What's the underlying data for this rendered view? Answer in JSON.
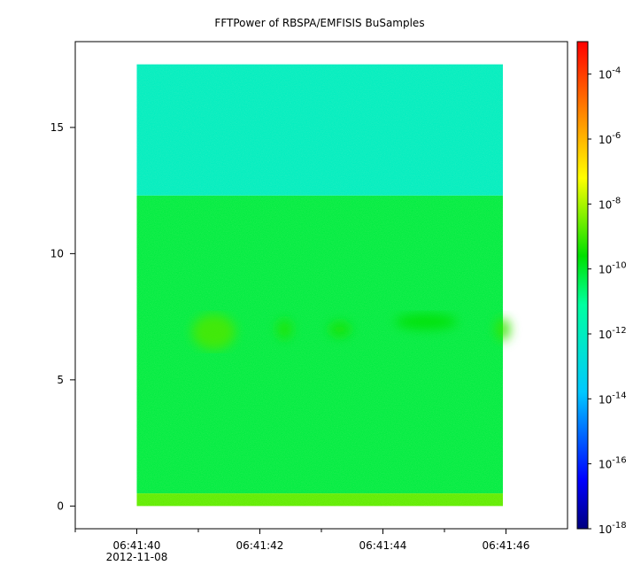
{
  "chart_data": {
    "type": "heatmap",
    "title": "FFTPower of RBSPA/EMFISIS  BuSamples",
    "xlabel": "",
    "ylabel": "",
    "x": {
      "ticks": [
        {
          "t": 0,
          "label": "06:41:40"
        },
        {
          "t": 2,
          "label": "06:41:42"
        },
        {
          "t": 4,
          "label": "06:41:44"
        },
        {
          "t": 6,
          "label": "06:41:46"
        }
      ],
      "minor_ticks": [
        -1,
        1,
        3,
        5
      ],
      "date_label": "2012-11-08",
      "range": [
        -1.0,
        7.0
      ],
      "data_range": [
        0.0,
        5.95
      ]
    },
    "y": {
      "ticks": [
        0,
        5,
        10,
        15
      ],
      "range": [
        -0.9,
        18.4
      ],
      "data_range": [
        0.0,
        17.5
      ]
    },
    "colorbar": {
      "scale": "log",
      "range": [
        1e-18,
        0.001
      ],
      "ticks": [
        {
          "base": "10",
          "exp": "-4",
          "value": 0.0001
        },
        {
          "base": "10",
          "exp": "-6",
          "value": 1e-06
        },
        {
          "base": "10",
          "exp": "-8",
          "value": 1e-08
        },
        {
          "base": "10",
          "exp": "-10",
          "value": 1e-10
        },
        {
          "base": "10",
          "exp": "-12",
          "value": 1e-12
        },
        {
          "base": "10",
          "exp": "-14",
          "value": 1e-14
        },
        {
          "base": "10",
          "exp": "-16",
          "value": 1e-16
        },
        {
          "base": "10",
          "exp": "-18",
          "value": 1e-18
        }
      ],
      "colormap": [
        "#00007f",
        "#0000ff",
        "#00c8ff",
        "#00ffa0",
        "#00e000",
        "#ffff00",
        "#ff8000",
        "#ff0000"
      ]
    },
    "bands": [
      {
        "y": [
          12.3,
          17.5
        ],
        "log_power": -12.0
      },
      {
        "y": [
          0.5,
          12.3
        ],
        "log_power": -10.2
      },
      {
        "y": [
          0.0,
          0.5
        ],
        "log_power": -8.7
      }
    ],
    "features": [
      {
        "t": 1.25,
        "y": 6.9,
        "dt": 0.35,
        "dy": 1.4,
        "log_power": -8.9
      },
      {
        "t": 2.4,
        "y": 7.0,
        "dt": 0.12,
        "dy": 0.8,
        "log_power": -9.3
      },
      {
        "t": 3.3,
        "y": 7.0,
        "dt": 0.18,
        "dy": 0.6,
        "log_power": -9.4
      },
      {
        "t": 4.7,
        "y": 7.3,
        "dt": 0.5,
        "dy": 0.6,
        "log_power": -9.6
      },
      {
        "t": 5.95,
        "y": 7.0,
        "dt": 0.12,
        "dy": 0.9,
        "log_power": -9.1
      }
    ]
  }
}
